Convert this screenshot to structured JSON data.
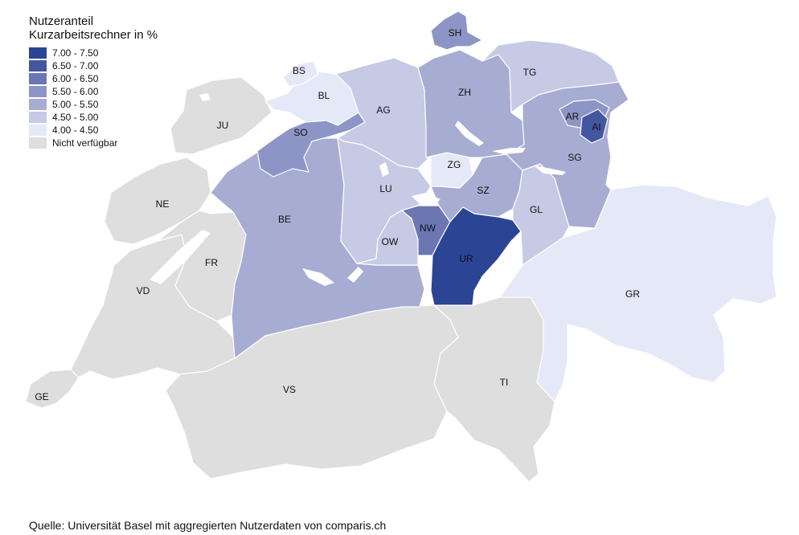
{
  "legend": {
    "title_line1": "Nutzeranteil",
    "title_line2": "Kurzarbeitsrechner in %",
    "items": [
      {
        "label": "7.00 - 7.50",
        "color": "#2b4594"
      },
      {
        "label": "6.50 - 7.00",
        "color": "#4456a0"
      },
      {
        "label": "6.00 - 6.50",
        "color": "#6b76b3"
      },
      {
        "label": "5.50 - 6.00",
        "color": "#8d95c6"
      },
      {
        "label": "5.00 - 5.50",
        "color": "#a7acd3"
      },
      {
        "label": "4.50 - 5.00",
        "color": "#c6cae4"
      },
      {
        "label": "4.00 - 4.50",
        "color": "#e5e8f7"
      },
      {
        "label": "Nicht verfügbar",
        "color": "#dedede"
      }
    ]
  },
  "source": "Quelle: Universität Basel mit aggregierten Nutzerdaten von comparis.ch",
  "cantons": [
    {
      "code": "SH",
      "range": "5.50 - 6.00",
      "color": "#8d95c6"
    },
    {
      "code": "BS",
      "range": "4.00 - 4.50",
      "color": "#e5e8f7"
    },
    {
      "code": "BL",
      "range": "4.00 - 4.50",
      "color": "#e5e8f7"
    },
    {
      "code": "TG",
      "range": "4.50 - 5.00",
      "color": "#c6cae4"
    },
    {
      "code": "AG",
      "range": "4.50 - 5.00",
      "color": "#c6cae4"
    },
    {
      "code": "ZH",
      "range": "5.00 - 5.50",
      "color": "#a7acd3"
    },
    {
      "code": "JU",
      "range": "Nicht verfügbar",
      "color": "#dedede"
    },
    {
      "code": "AR",
      "range": "5.50 - 6.00",
      "color": "#8d95c6"
    },
    {
      "code": "AI",
      "range": "6.50 - 7.00",
      "color": "#4456a0"
    },
    {
      "code": "SO",
      "range": "5.50 - 6.00",
      "color": "#8d95c6"
    },
    {
      "code": "SG",
      "range": "5.00 - 5.50",
      "color": "#a7acd3"
    },
    {
      "code": "ZG",
      "range": "4.00 - 4.50",
      "color": "#e5e8f7"
    },
    {
      "code": "LU",
      "range": "4.50 - 5.00",
      "color": "#c6cae4"
    },
    {
      "code": "SZ",
      "range": "5.00 - 5.50",
      "color": "#a7acd3"
    },
    {
      "code": "NE",
      "range": "Nicht verfügbar",
      "color": "#dedede"
    },
    {
      "code": "BE",
      "range": "5.00 - 5.50",
      "color": "#a7acd3"
    },
    {
      "code": "GL",
      "range": "4.50 - 5.00",
      "color": "#c6cae4"
    },
    {
      "code": "NW",
      "range": "6.00 - 6.50",
      "color": "#6b76b3"
    },
    {
      "code": "OW",
      "range": "4.50 - 5.00",
      "color": "#c6cae4"
    },
    {
      "code": "FR",
      "range": "Nicht verfügbar",
      "color": "#dedede"
    },
    {
      "code": "UR",
      "range": "7.00 - 7.50",
      "color": "#2b4594"
    },
    {
      "code": "VD",
      "range": "Nicht verfügbar",
      "color": "#dedede"
    },
    {
      "code": "GR",
      "range": "4.00 - 4.50",
      "color": "#e5e8f7"
    },
    {
      "code": "TI",
      "range": "Nicht verfügbar",
      "color": "#dedede"
    },
    {
      "code": "VS",
      "range": "Nicht verfügbar",
      "color": "#dedede"
    },
    {
      "code": "GE",
      "range": "Nicht verfügbar",
      "color": "#dedede"
    }
  ]
}
